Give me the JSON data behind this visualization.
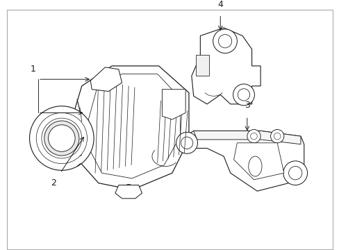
{
  "background_color": "#ffffff",
  "line_color": "#1a1a1a",
  "figsize": [
    4.89,
    3.6
  ],
  "dpi": 100,
  "border_color": "#aaaaaa",
  "label_fontsize": 9,
  "lw": 0.8
}
